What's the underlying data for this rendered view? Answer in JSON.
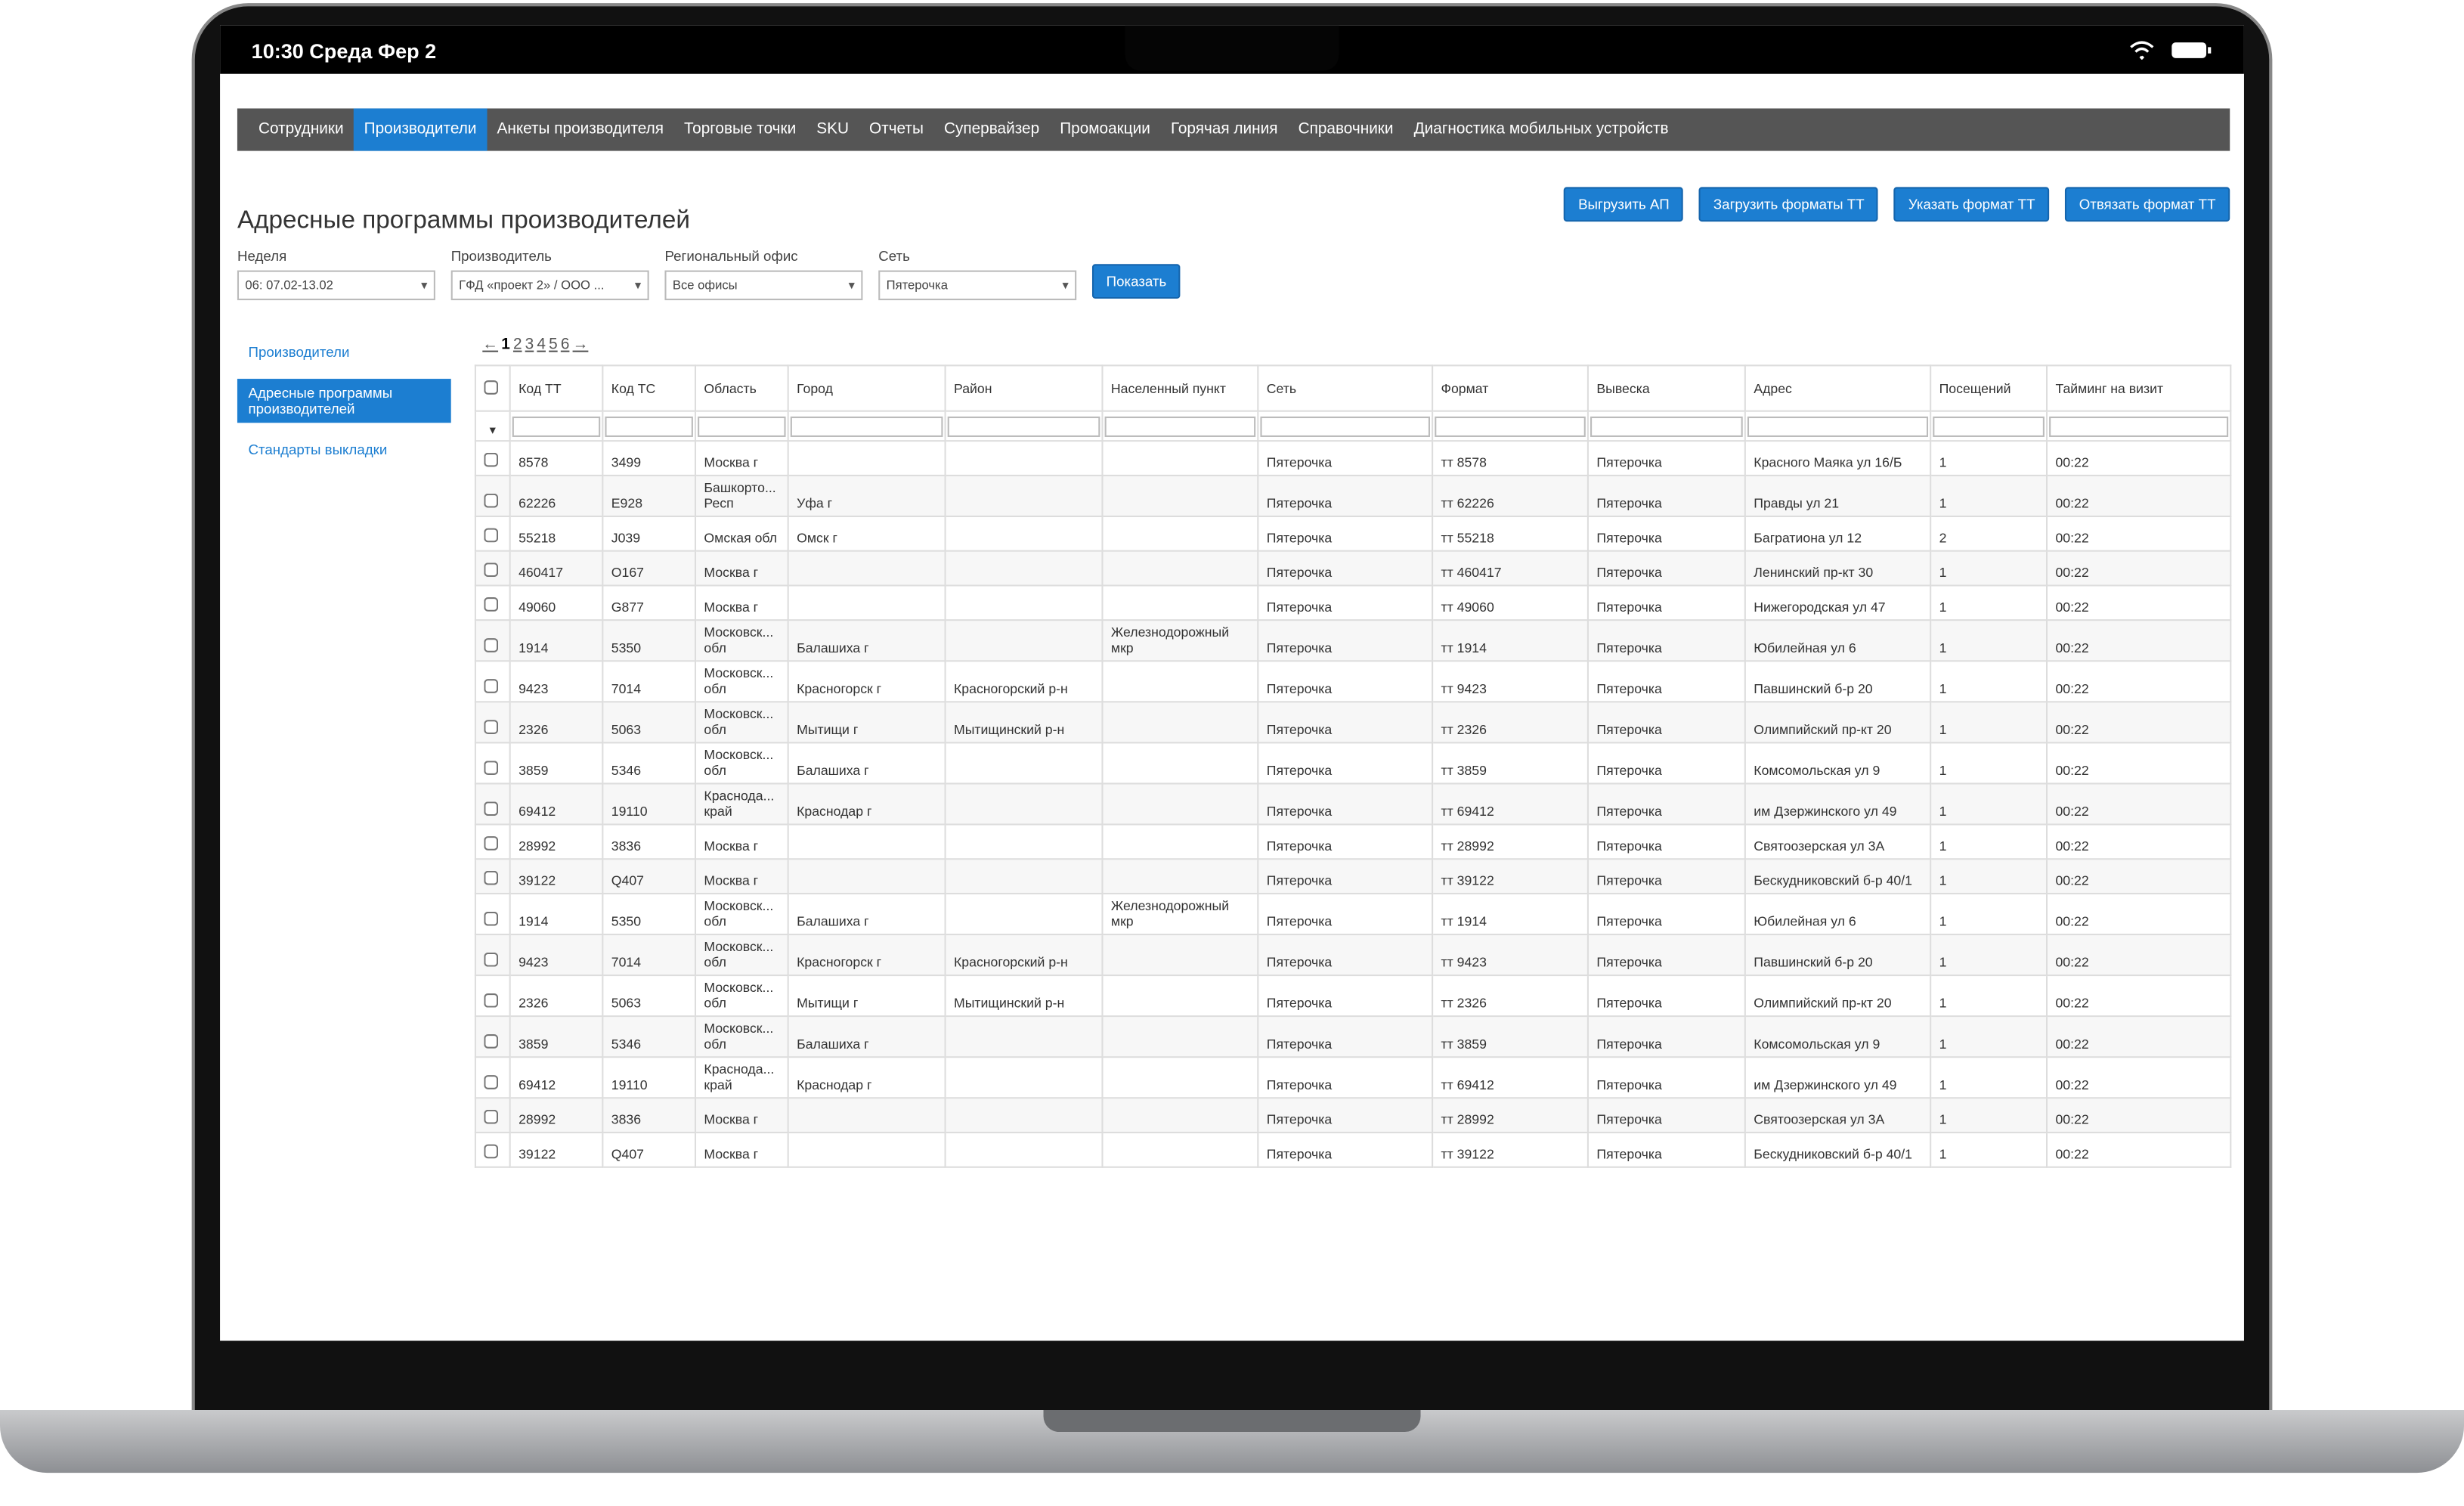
{
  "status_bar": {
    "time": "10:30 Среда Фер 2"
  },
  "nav": {
    "items": [
      "Сотрудники",
      "Производители",
      "Анкеты производителя",
      "Торговые точки",
      "SKU",
      "Отчеты",
      "Супервайзер",
      "Промоакции",
      "Горячая линия",
      "Справочники",
      "Диагностика мобильных устройств"
    ],
    "active": 1
  },
  "header": {
    "title": "Адресные программы производителей"
  },
  "buttons": [
    "Выгрузить АП",
    "Загрузить форматы ТТ",
    "Указать формат ТТ",
    "Отвязать формат ТТ"
  ],
  "filters": [
    {
      "label": "Неделя",
      "value": "06: 07.02-13.02"
    },
    {
      "label": "Производитель",
      "value": "ГФД «проект 2» / ООО ..."
    },
    {
      "label": "Региональный офис",
      "value": "Все офисы"
    },
    {
      "label": "Сеть",
      "value": "Пятерочка"
    }
  ],
  "show_button": "Показать",
  "sidebar": {
    "items": [
      "Производители",
      "Адресные программы производителей",
      "Стандарты выкладки"
    ],
    "active": 1
  },
  "pagination": {
    "prev": "←",
    "pages": [
      "1",
      "2",
      "3",
      "4",
      "5",
      "6"
    ],
    "current": 0,
    "next": "→"
  },
  "table": {
    "columns": [
      "Код ТТ",
      "Код ТС",
      "Область",
      "Город",
      "Район",
      "Населенный пункт",
      "Сеть",
      "Формат",
      "Вывеска",
      "Адрес",
      "Посещений",
      "Тайминг на визит"
    ],
    "rows": [
      [
        "8578",
        "3499",
        "Москва г",
        null,
        null,
        null,
        "Пятерочка",
        "тт 8578",
        "Пятерочка",
        "Красного Маяка ул 16/Б",
        "1",
        "00:22"
      ],
      [
        "62226",
        "E928",
        "Башкорто... Респ",
        "Уфа г",
        null,
        null,
        "Пятерочка",
        "тт 62226",
        "Пятерочка",
        "Правды ул 21",
        "1",
        "00:22"
      ],
      [
        "55218",
        "J039",
        "Омская обл",
        "Омск г",
        null,
        null,
        "Пятерочка",
        "тт 55218",
        "Пятерочка",
        "Багратиона ул 12",
        "2",
        "00:22"
      ],
      [
        "460417",
        "O167",
        "Москва г",
        null,
        null,
        null,
        "Пятерочка",
        "тт 460417",
        "Пятерочка",
        "Ленинский пр-кт 30",
        "1",
        "00:22"
      ],
      [
        "49060",
        "G877",
        "Москва г",
        null,
        null,
        null,
        "Пятерочка",
        "тт 49060",
        "Пятерочка",
        "Нижегородская ул 47",
        "1",
        "00:22"
      ],
      [
        "1914",
        "5350",
        "Московск... обл",
        "Балашиха г",
        null,
        "Железнодорожный мкр",
        "Пятерочка",
        "тт 1914",
        "Пятерочка",
        "Юбилейная ул 6",
        "1",
        "00:22"
      ],
      [
        "9423",
        "7014",
        "Московск... обл",
        "Красногорск г",
        "Красногорский р-н",
        null,
        "Пятерочка",
        "тт 9423",
        "Пятерочка",
        "Павшинский б-р 20",
        "1",
        "00:22"
      ],
      [
        "2326",
        "5063",
        "Московск... обл",
        "Мытищи г",
        "Мытищинский р-н",
        null,
        "Пятерочка",
        "тт 2326",
        "Пятерочка",
        "Олимпийский пр-кт 20",
        "1",
        "00:22"
      ],
      [
        "3859",
        "5346",
        "Московск... обл",
        "Балашиха г",
        null,
        null,
        "Пятерочка",
        "тт 3859",
        "Пятерочка",
        "Комсомольская ул 9",
        "1",
        "00:22"
      ],
      [
        "69412",
        "19110",
        "Краснода... край",
        "Краснодар г",
        null,
        null,
        "Пятерочка",
        "тт 69412",
        "Пятерочка",
        "им Дзержинского ул 49",
        "1",
        "00:22"
      ],
      [
        "28992",
        "3836",
        "Москва г",
        null,
        null,
        null,
        "Пятерочка",
        "тт 28992",
        "Пятерочка",
        "Святоозерская ул 3А",
        "1",
        "00:22"
      ],
      [
        "39122",
        "Q407",
        "Москва г",
        null,
        null,
        null,
        "Пятерочка",
        "тт 39122",
        "Пятерочка",
        "Бескудниковский б-р 40/1",
        "1",
        "00:22"
      ],
      [
        "1914",
        "5350",
        "Московск... обл",
        "Балашиха г",
        null,
        "Железнодорожный мкр",
        "Пятерочка",
        "тт 1914",
        "Пятерочка",
        "Юбилейная ул 6",
        "1",
        "00:22"
      ],
      [
        "9423",
        "7014",
        "Московск... обл",
        "Красногорск г",
        "Красногорский р-н",
        null,
        "Пятерочка",
        "тт 9423",
        "Пятерочка",
        "Павшинский б-р 20",
        "1",
        "00:22"
      ],
      [
        "2326",
        "5063",
        "Московск... обл",
        "Мытищи г",
        "Мытищинский р-н",
        null,
        "Пятерочка",
        "тт 2326",
        "Пятерочка",
        "Олимпийский пр-кт 20",
        "1",
        "00:22"
      ],
      [
        "3859",
        "5346",
        "Московск... обл",
        "Балашиха г",
        null,
        null,
        "Пятерочка",
        "тт 3859",
        "Пятерочка",
        "Комсомольская ул 9",
        "1",
        "00:22"
      ],
      [
        "69412",
        "19110",
        "Краснода... край",
        "Краснодар г",
        null,
        null,
        "Пятерочка",
        "тт 69412",
        "Пятерочка",
        "им Дзержинского ул 49",
        "1",
        "00:22"
      ],
      [
        "28992",
        "3836",
        "Москва г",
        null,
        null,
        null,
        "Пятерочка",
        "тт 28992",
        "Пятерочка",
        "Святоозерская ул 3А",
        "1",
        "00:22"
      ],
      [
        "39122",
        "Q407",
        "Москва г",
        null,
        null,
        null,
        "Пятерочка",
        "тт 39122",
        "Пятерочка",
        "Бескудниковский б-р 40/1",
        "1",
        "00:22"
      ]
    ]
  }
}
